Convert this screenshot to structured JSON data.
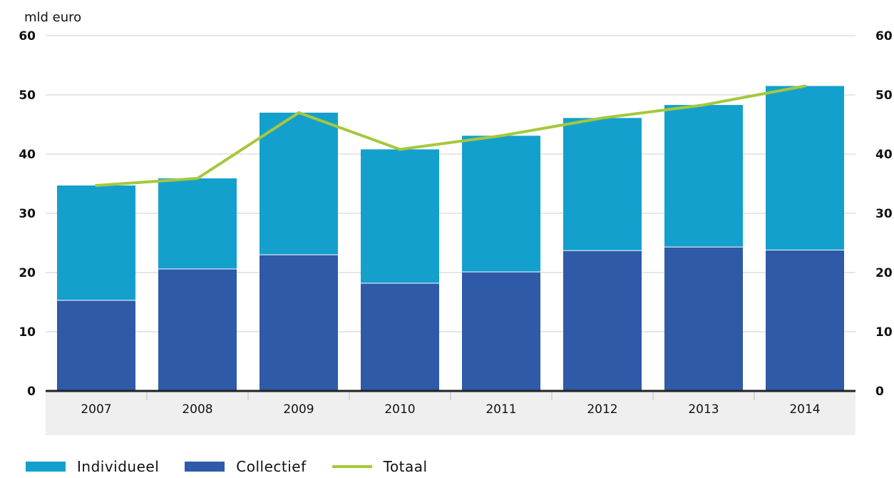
{
  "chart_data": {
    "type": "bar",
    "stacked": true,
    "unit_label": "mld euro",
    "categories": [
      "2007",
      "2008",
      "2009",
      "2010",
      "2011",
      "2012",
      "2013",
      "2014"
    ],
    "series": [
      {
        "name": "Collectief",
        "kind": "bar",
        "color": "#2e5aa8",
        "values": [
          15.3,
          20.6,
          23.0,
          18.2,
          20.1,
          23.7,
          24.3,
          23.8
        ]
      },
      {
        "name": "Individueel",
        "kind": "bar",
        "color": "#14a0cc",
        "values": [
          19.4,
          15.3,
          24.0,
          22.6,
          23.0,
          22.4,
          24.0,
          27.7
        ]
      },
      {
        "name": "Totaal",
        "kind": "line",
        "color": "#a5c83d",
        "values": [
          34.7,
          35.9,
          47.0,
          40.8,
          43.1,
          46.1,
          48.3,
          51.5
        ]
      }
    ],
    "ylim": [
      0,
      60
    ],
    "yticks": [
      0,
      10,
      20,
      30,
      40,
      50,
      60
    ],
    "grid": true,
    "legend_position": "bottom-left"
  },
  "legend": [
    {
      "label": "Individueel",
      "color": "#14a0cc",
      "style": "box"
    },
    {
      "label": "Collectief",
      "color": "#2e5aa8",
      "style": "box"
    },
    {
      "label": "Totaal",
      "color": "#a5c83d",
      "style": "line"
    }
  ]
}
